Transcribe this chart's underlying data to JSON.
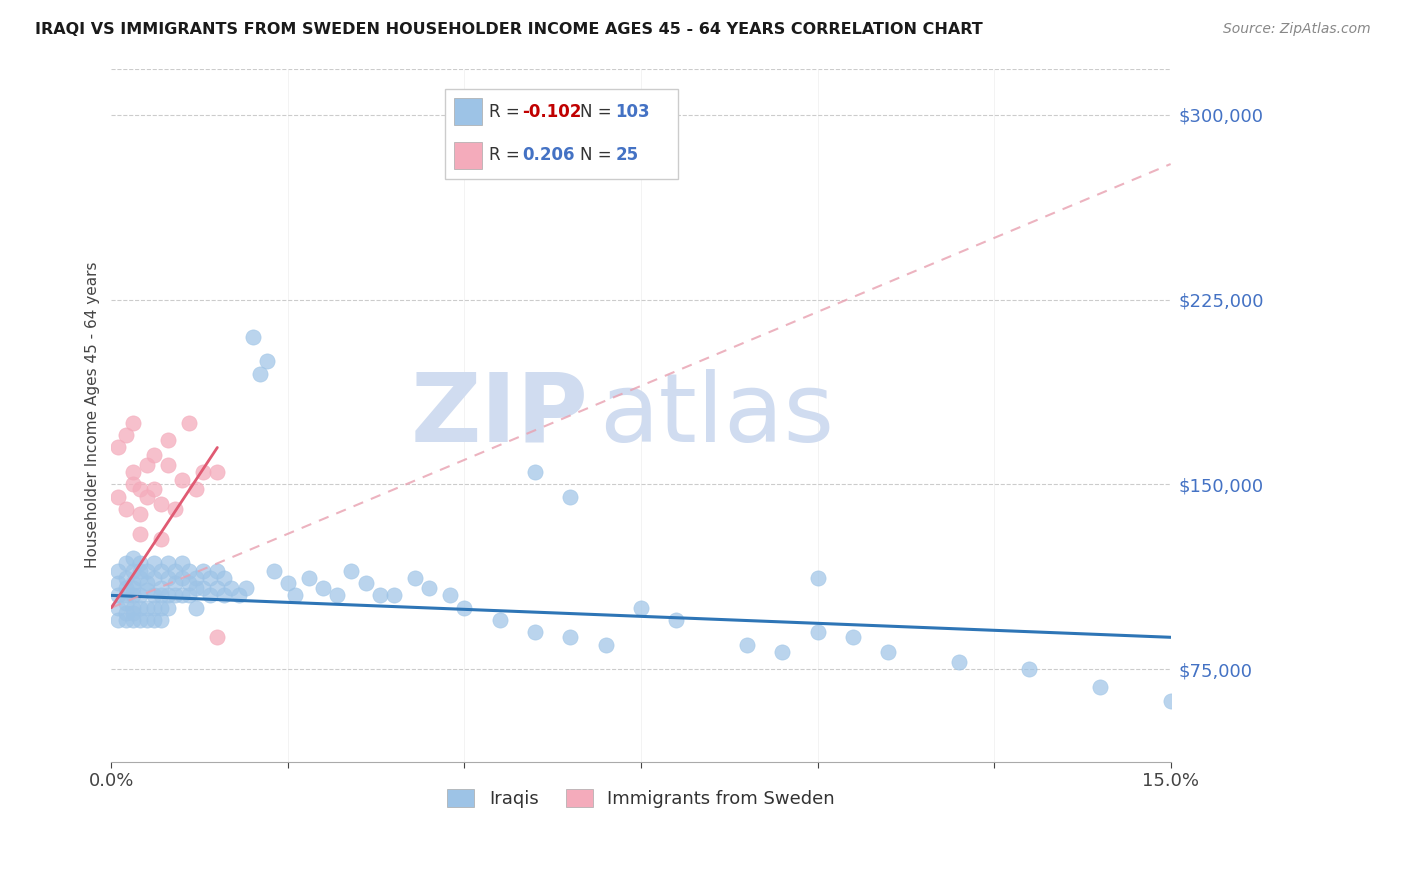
{
  "title": "IRAQI VS IMMIGRANTS FROM SWEDEN HOUSEHOLDER INCOME AGES 45 - 64 YEARS CORRELATION CHART",
  "source": "Source: ZipAtlas.com",
  "ylabel": "Householder Income Ages 45 - 64 years",
  "xmin": 0.0,
  "xmax": 0.15,
  "ymin": 37500,
  "ymax": 318750,
  "yticks": [
    75000,
    150000,
    225000,
    300000
  ],
  "ytick_labels": [
    "$75,000",
    "$150,000",
    "$225,000",
    "$300,000"
  ],
  "xticks": [
    0.0,
    0.025,
    0.05,
    0.075,
    0.1,
    0.125,
    0.15
  ],
  "xtick_labels": [
    "0.0%",
    "",
    "",
    "",
    "",
    "",
    "15.0%"
  ],
  "iraqis_color": "#9DC3E6",
  "sweden_color": "#F4ABBB",
  "trendline_iraqis_color": "#2E75B6",
  "trendline_sweden_color": "#E05A72",
  "trendline_sweden_dash_color": "#C8A0B0",
  "legend_R_iraqis": "-0.102",
  "legend_N_iraqis": "103",
  "legend_R_sweden": "0.206",
  "legend_N_sweden": "25",
  "legend_R_iraqis_color": "#C00000",
  "legend_N_color": "#4472C4",
  "legend_R_sweden_color": "#4472C4",
  "watermark_zip": "ZIP",
  "watermark_atlas": "atlas",
  "watermark_color": "#D0DCF0",
  "iraqis_x": [
    0.001,
    0.001,
    0.001,
    0.001,
    0.001,
    0.002,
    0.002,
    0.002,
    0.002,
    0.002,
    0.002,
    0.002,
    0.003,
    0.003,
    0.003,
    0.003,
    0.003,
    0.003,
    0.003,
    0.003,
    0.004,
    0.004,
    0.004,
    0.004,
    0.004,
    0.004,
    0.005,
    0.005,
    0.005,
    0.005,
    0.005,
    0.006,
    0.006,
    0.006,
    0.006,
    0.006,
    0.007,
    0.007,
    0.007,
    0.007,
    0.007,
    0.008,
    0.008,
    0.008,
    0.008,
    0.009,
    0.009,
    0.009,
    0.01,
    0.01,
    0.01,
    0.011,
    0.011,
    0.011,
    0.012,
    0.012,
    0.012,
    0.013,
    0.013,
    0.014,
    0.014,
    0.015,
    0.015,
    0.016,
    0.016,
    0.017,
    0.018,
    0.019,
    0.02,
    0.021,
    0.022,
    0.023,
    0.025,
    0.026,
    0.028,
    0.03,
    0.032,
    0.034,
    0.036,
    0.038,
    0.04,
    0.043,
    0.045,
    0.048,
    0.05,
    0.055,
    0.06,
    0.065,
    0.07,
    0.075,
    0.08,
    0.09,
    0.095,
    0.1,
    0.105,
    0.11,
    0.12,
    0.13,
    0.14,
    0.15,
    0.06,
    0.065,
    0.1
  ],
  "iraqis_y": [
    105000,
    110000,
    100000,
    95000,
    115000,
    108000,
    112000,
    105000,
    98000,
    102000,
    95000,
    118000,
    110000,
    115000,
    105000,
    100000,
    108000,
    98000,
    120000,
    95000,
    112000,
    118000,
    105000,
    100000,
    115000,
    95000,
    110000,
    107000,
    100000,
    115000,
    95000,
    118000,
    112000,
    105000,
    100000,
    95000,
    115000,
    108000,
    105000,
    100000,
    95000,
    112000,
    118000,
    105000,
    100000,
    115000,
    110000,
    105000,
    118000,
    112000,
    105000,
    115000,
    110000,
    105000,
    112000,
    108000,
    100000,
    115000,
    108000,
    112000,
    105000,
    115000,
    108000,
    112000,
    105000,
    108000,
    105000,
    108000,
    210000,
    195000,
    200000,
    115000,
    110000,
    105000,
    112000,
    108000,
    105000,
    115000,
    110000,
    105000,
    105000,
    112000,
    108000,
    105000,
    100000,
    95000,
    90000,
    88000,
    85000,
    100000,
    95000,
    85000,
    82000,
    90000,
    88000,
    82000,
    78000,
    75000,
    68000,
    62000,
    155000,
    145000,
    112000
  ],
  "sweden_x": [
    0.001,
    0.001,
    0.002,
    0.002,
    0.003,
    0.003,
    0.003,
    0.004,
    0.004,
    0.004,
    0.005,
    0.005,
    0.006,
    0.006,
    0.007,
    0.007,
    0.008,
    0.008,
    0.009,
    0.01,
    0.011,
    0.012,
    0.013,
    0.015,
    0.015
  ],
  "sweden_y": [
    145000,
    165000,
    140000,
    170000,
    155000,
    175000,
    150000,
    148000,
    138000,
    130000,
    158000,
    145000,
    162000,
    148000,
    142000,
    128000,
    158000,
    168000,
    140000,
    152000,
    175000,
    148000,
    155000,
    155000,
    88000
  ]
}
